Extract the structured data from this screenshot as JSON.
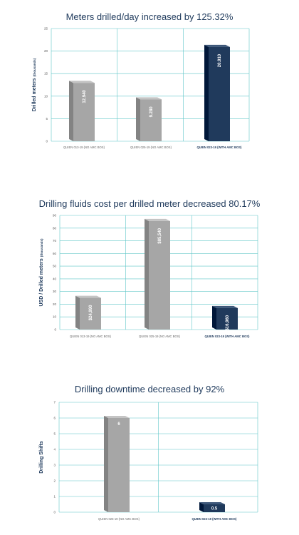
{
  "chart_data": [
    {
      "type": "bar",
      "title": "Meters drilled/day increased by 125.32%",
      "ylabel": "Drilled meters",
      "ylabel_unit": "(thousands)",
      "ylim": [
        0,
        25
      ],
      "yticks": [
        "0",
        "5",
        "10",
        "15",
        "20",
        "25"
      ],
      "categories": [
        "QUIEN 013-19 (NO AMC BOS)",
        "QUIEN 025-19 (NO AMC BOS)",
        "QUIEN 023-19 (WITH AMC BOS)"
      ],
      "values": [
        12.94,
        9.28,
        20.91
      ],
      "value_labels": [
        "12.940",
        "9.280",
        "20.910"
      ],
      "label_rotated": true,
      "highlight_index": 2,
      "colors": [
        "#a6a6a6",
        "#a6a6a6",
        "#203a5c"
      ],
      "grid": true
    },
    {
      "type": "bar",
      "title": "Drilling fluids cost per drilled meter decreased 80.17%",
      "ylabel": "USD / Drilled meters",
      "ylabel_unit": "(thousands)",
      "ylim": [
        0,
        90
      ],
      "yticks": [
        "0",
        "10",
        "20",
        "30",
        "40",
        "50",
        "60",
        "70",
        "80",
        "90"
      ],
      "categories": [
        "QUIEN 013-19 (NO AMC BOS)",
        "QUIEN 025-19 (NO AMC BOS)",
        "QUIEN 023-19 (WITH AMC BOS)"
      ],
      "values": [
        24.99,
        85.54,
        16.96
      ],
      "value_labels": [
        "$24,990",
        "$85,540",
        "$16,960"
      ],
      "label_rotated": true,
      "highlight_index": 2,
      "colors": [
        "#a6a6a6",
        "#a6a6a6",
        "#203a5c"
      ],
      "grid": true
    },
    {
      "type": "bar",
      "title": "Drilling downtime decreased by 92%",
      "ylabel": "Drilling Shifts",
      "ylabel_unit": "",
      "ylim": [
        0,
        7
      ],
      "yticks": [
        "0",
        "1",
        "2",
        "3",
        "4",
        "5",
        "6",
        "7"
      ],
      "categories": [
        "QUIEN 025-19 (NO AMC BOS)",
        "QUIEN 023-19 (WITH AMC BOS)"
      ],
      "values": [
        6,
        0.5
      ],
      "value_labels": [
        "6",
        "0.5"
      ],
      "label_rotated": false,
      "highlight_index": 1,
      "colors": [
        "#a6a6a6",
        "#203a5c"
      ],
      "grid": true
    }
  ]
}
